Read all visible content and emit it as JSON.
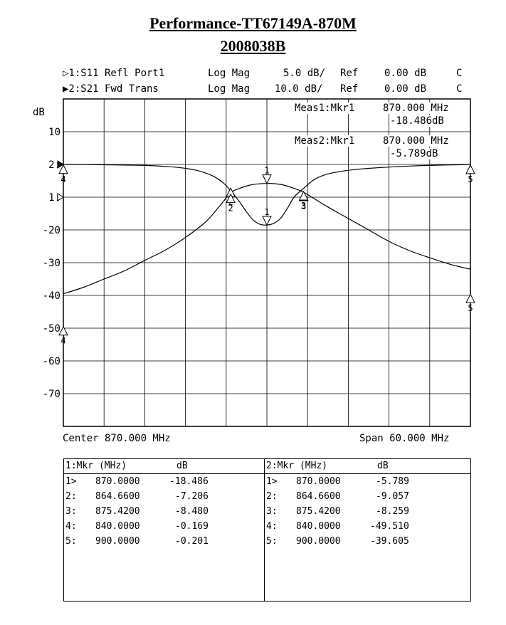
{
  "header": {
    "title": "Performance-TT67149A-870M",
    "subtitle": "2008038B"
  },
  "channels": [
    {
      "label": "▷1:S11 Refl Port1",
      "format": "Log Mag",
      "scale": "5.0 dB/",
      "ref": "Ref",
      "ref_value": "0.00 dB",
      "flag": "C"
    },
    {
      "label": "▶2:S21 Fwd Trans",
      "format": "Log Mag",
      "scale": "10.0 dB/",
      "ref": "Ref",
      "ref_value": "0.00 dB",
      "flag": "C"
    }
  ],
  "meas": [
    {
      "label": "Meas1:Mkr1",
      "freq": "870.000 MHz",
      "value": "-18.486dB"
    },
    {
      "label": "Meas2:Mkr1",
      "freq": "870.000 MHz",
      "value": "-5.789dB"
    }
  ],
  "footer": {
    "center": "Center 870.000 MHz",
    "span": "Span 60.000 MHz"
  },
  "chart_data": {
    "type": "line",
    "ylabel": "dB",
    "y_ticks": [
      "10",
      "2:",
      "1:",
      "-20",
      "-30",
      "-40",
      "-50",
      "-60",
      "-70"
    ],
    "xlim": [
      840,
      900
    ],
    "ylim": [
      -80,
      20
    ],
    "grid": true,
    "series": [
      {
        "channel": "S11",
        "color": "#000000",
        "x": [
          840,
          843,
          846,
          849,
          852,
          855,
          858,
          860,
          862,
          863.5,
          864.66,
          866,
          867,
          868,
          869,
          870,
          871,
          872,
          873,
          874,
          875.42,
          877,
          879,
          882,
          885,
          888,
          891,
          894,
          897,
          900
        ],
        "y": [
          0.0,
          -0.05,
          -0.1,
          -0.2,
          -0.3,
          -0.6,
          -1.2,
          -2.0,
          -3.5,
          -5.5,
          -8.0,
          -11.5,
          -14.5,
          -17.0,
          -18.3,
          -18.5,
          -18.0,
          -16.5,
          -13.5,
          -10.0,
          -7.3,
          -4.6,
          -2.9,
          -1.8,
          -1.2,
          -0.8,
          -0.5,
          -0.3,
          -0.15,
          -0.05
        ]
      },
      {
        "channel": "S21",
        "color": "#000000",
        "x": [
          840,
          843,
          846,
          849,
          852,
          855,
          858,
          861,
          863,
          864.66,
          866,
          867.5,
          869,
          870,
          871,
          872.5,
          874,
          875.42,
          877,
          879,
          882,
          885,
          888,
          891,
          894,
          897,
          900
        ],
        "y": [
          -39.5,
          -37.5,
          -35.0,
          -32.5,
          -29.3,
          -26.2,
          -22.3,
          -17.5,
          -12.8,
          -8.7,
          -7.3,
          -6.3,
          -5.9,
          -5.8,
          -5.85,
          -6.3,
          -7.3,
          -8.5,
          -10.5,
          -13.0,
          -16.5,
          -20.0,
          -23.5,
          -26.3,
          -28.5,
          -30.5,
          -32.0
        ]
      }
    ],
    "markers": {
      "channel1": [
        {
          "id": "1",
          "x": 870.0,
          "y": -18.486
        },
        {
          "id": "2",
          "x": 864.66,
          "y": -7.206
        },
        {
          "id": "3",
          "x": 875.42,
          "y": -8.48
        },
        {
          "id": "4",
          "x": 840.0,
          "y": -0.169
        },
        {
          "id": "5",
          "x": 900.0,
          "y": -0.201
        }
      ],
      "channel2": [
        {
          "id": "1",
          "x": 870.0,
          "y": -5.789
        },
        {
          "id": "2",
          "x": 864.66,
          "y": -9.057
        },
        {
          "id": "3",
          "x": 875.42,
          "y": -8.259
        },
        {
          "id": "4",
          "x": 840.0,
          "y": -49.51
        },
        {
          "id": "5",
          "x": 900.0,
          "y": -39.605
        }
      ]
    }
  },
  "marker_table": {
    "left": {
      "header": "1:Mkr (MHz)",
      "unit": "dB",
      "rows": [
        {
          "idx": "1>",
          "freq": "870.0000",
          "val": "-18.486"
        },
        {
          "idx": "2:",
          "freq": "864.6600",
          "val": "-7.206"
        },
        {
          "idx": "3:",
          "freq": "875.4200",
          "val": "-8.480"
        },
        {
          "idx": "4:",
          "freq": "840.0000",
          "val": "-0.169"
        },
        {
          "idx": "5:",
          "freq": "900.0000",
          "val": "-0.201"
        }
      ]
    },
    "right": {
      "header": "2:Mkr (MHz)",
      "unit": "dB",
      "rows": [
        {
          "idx": "1>",
          "freq": "870.0000",
          "val": "-5.789"
        },
        {
          "idx": "2:",
          "freq": "864.6600",
          "val": "-9.057"
        },
        {
          "idx": "3:",
          "freq": "875.4200",
          "val": "-8.259"
        },
        {
          "idx": "4:",
          "freq": "840.0000",
          "val": "-49.510"
        },
        {
          "idx": "5:",
          "freq": "900.0000",
          "val": "-39.605"
        }
      ]
    }
  }
}
